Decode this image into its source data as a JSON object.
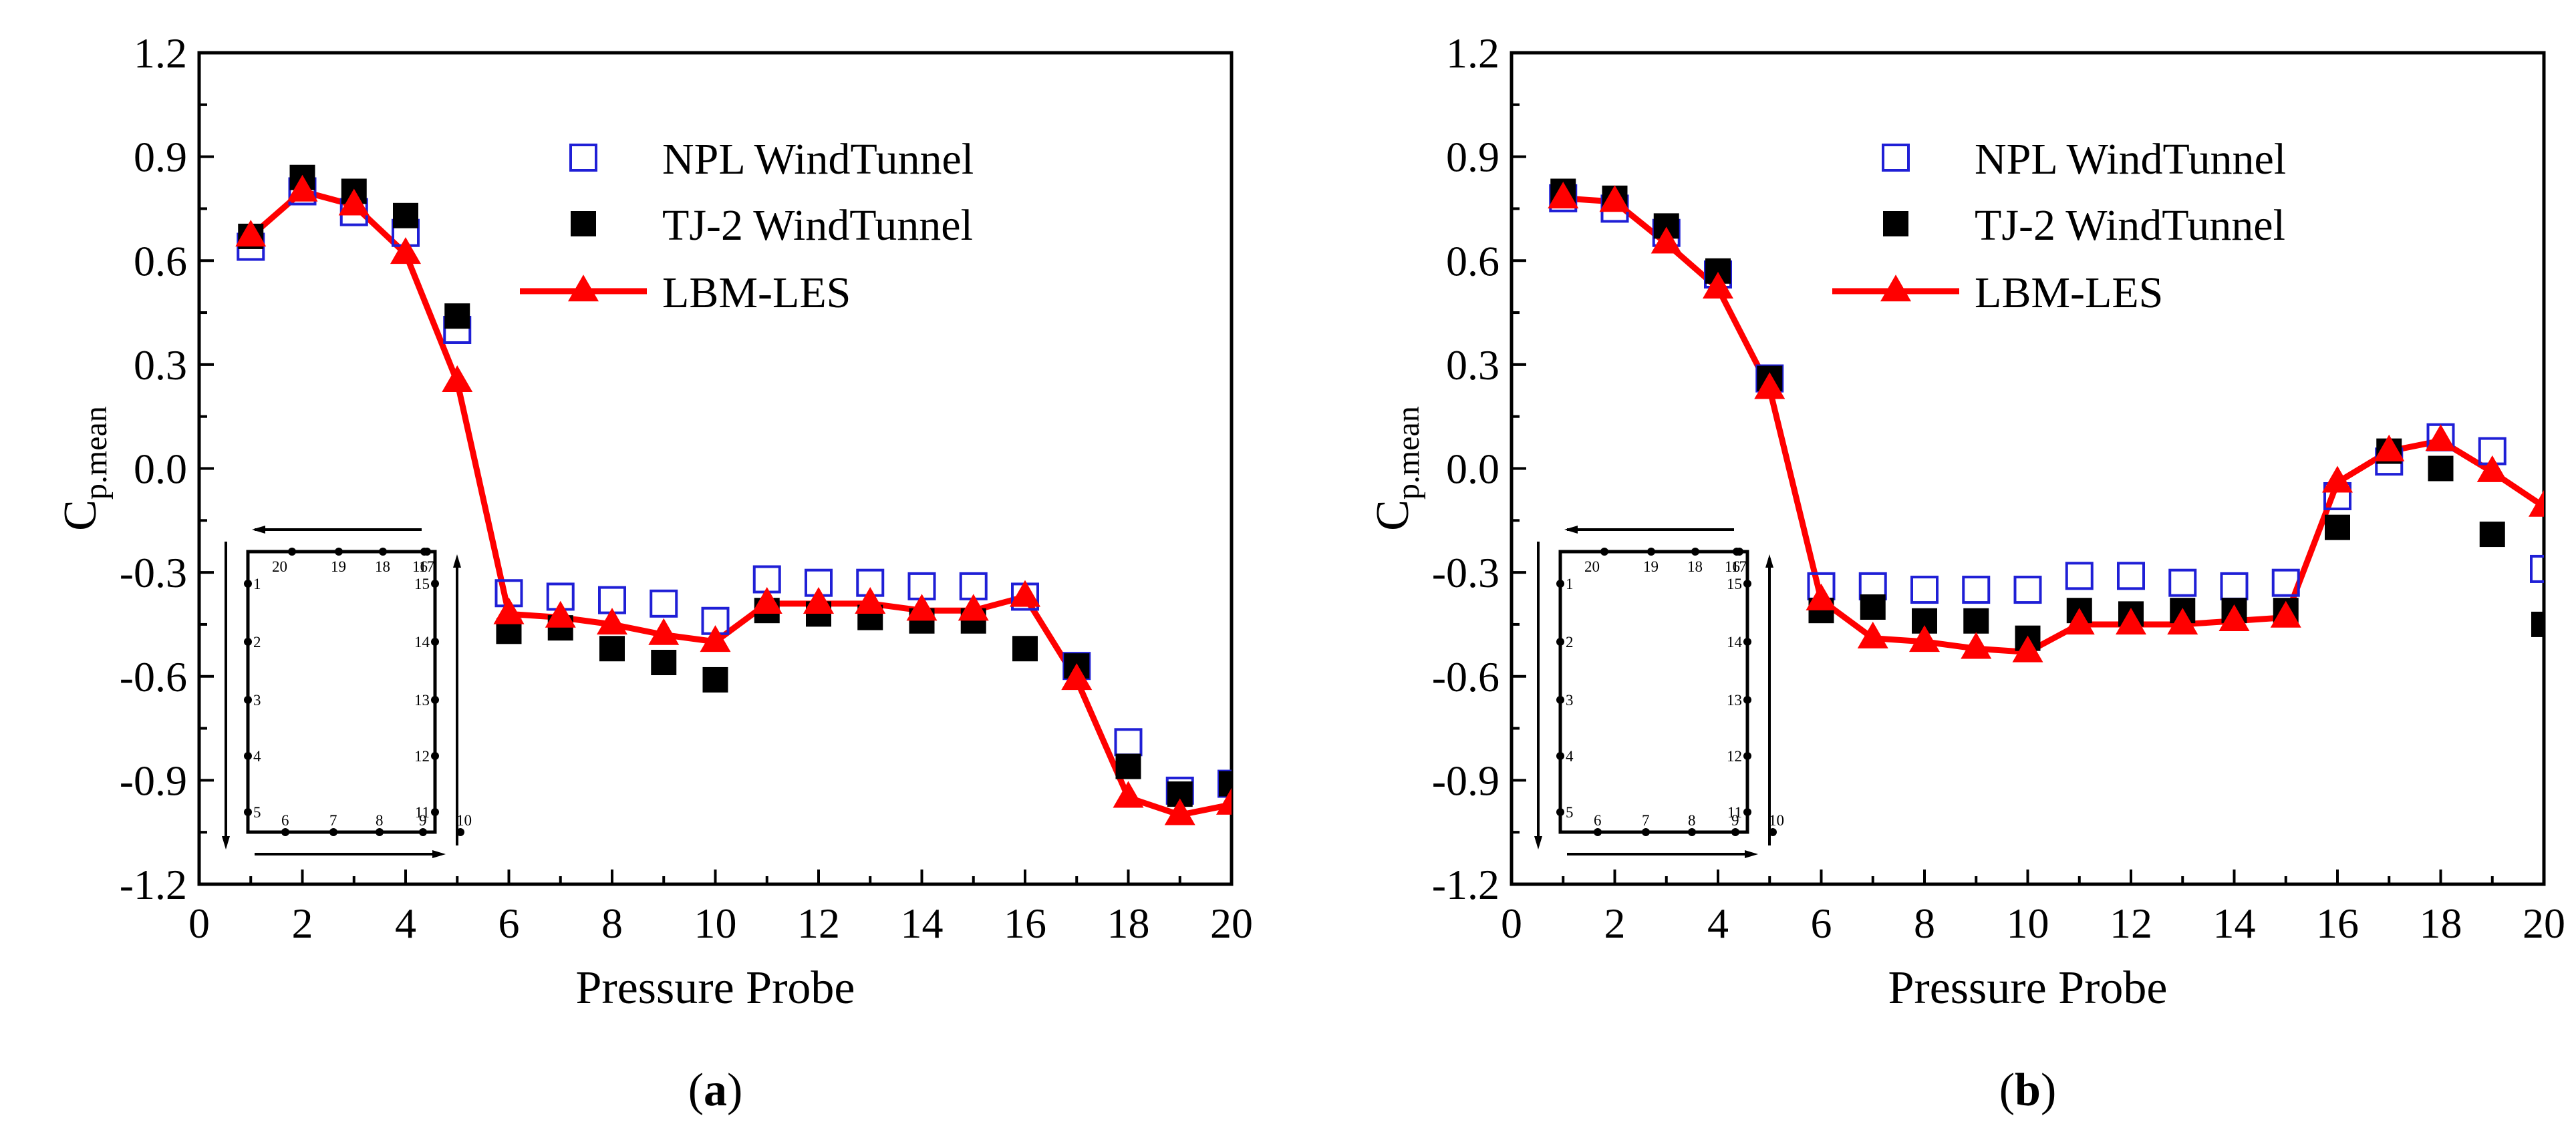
{
  "chart_data": [
    {
      "type": "line",
      "panel_label": "a",
      "xlabel": "Pressure Probe",
      "ylabel_main": "C",
      "ylabel_sub": "p.mean",
      "xlim": [
        0,
        20
      ],
      "ylim": [
        -1.2,
        1.2
      ],
      "xticks": [
        0,
        2,
        4,
        6,
        8,
        10,
        12,
        14,
        16,
        18,
        20
      ],
      "yticks": [
        -1.2,
        -0.9,
        -0.6,
        -0.3,
        0.0,
        0.3,
        0.6,
        0.9,
        1.2
      ],
      "ytick_labels": [
        "-1.2",
        "-0.9",
        "-0.6",
        "-0.3",
        "0.0",
        "0.3",
        "0.6",
        "0.9",
        "1.2"
      ],
      "legend_position": "top-right",
      "series": [
        {
          "name": "NPL WindTunnel",
          "marker": "open-square",
          "color": "#1f1fd6",
          "x": [
            1,
            2,
            3,
            4,
            5,
            6,
            7,
            8,
            9,
            10,
            11,
            12,
            13,
            14,
            15,
            16,
            17,
            18,
            19,
            20
          ],
          "values": [
            0.64,
            0.8,
            0.74,
            0.68,
            0.4,
            -0.36,
            -0.37,
            -0.38,
            -0.39,
            -0.44,
            -0.32,
            -0.33,
            -0.33,
            -0.34,
            -0.34,
            -0.37,
            -0.57,
            -0.79,
            -0.93,
            -0.91
          ]
        },
        {
          "name": "TJ-2 WindTunnel",
          "marker": "filled-square",
          "color": "#000000",
          "x": [
            1,
            2,
            3,
            4,
            5,
            6,
            7,
            8,
            9,
            10,
            11,
            12,
            13,
            14,
            15,
            16,
            17,
            18,
            19,
            20
          ],
          "values": [
            0.67,
            0.84,
            0.8,
            0.73,
            0.44,
            -0.47,
            -0.46,
            -0.52,
            -0.56,
            -0.61,
            -0.41,
            -0.42,
            -0.43,
            -0.44,
            -0.44,
            -0.52,
            -0.57,
            -0.86,
            -0.94,
            -0.91
          ]
        },
        {
          "name": "LBM-LES",
          "marker": "filled-triangle-line",
          "color": "#ff0000",
          "x": [
            1,
            2,
            3,
            4,
            5,
            6,
            7,
            8,
            9,
            10,
            11,
            12,
            13,
            14,
            15,
            16,
            17,
            18,
            19,
            20
          ],
          "values": [
            0.67,
            0.8,
            0.76,
            0.62,
            0.25,
            -0.42,
            -0.43,
            -0.45,
            -0.48,
            -0.5,
            -0.39,
            -0.39,
            -0.39,
            -0.41,
            -0.41,
            -0.37,
            -0.61,
            -0.95,
            -1.0,
            -0.97
          ]
        }
      ]
    },
    {
      "type": "line",
      "panel_label": "b",
      "xlabel": "Pressure Probe",
      "ylabel_main": "C",
      "ylabel_sub": "p.mean",
      "xlim": [
        0,
        20
      ],
      "ylim": [
        -1.2,
        1.2
      ],
      "xticks": [
        0,
        2,
        4,
        6,
        8,
        10,
        12,
        14,
        16,
        18,
        20
      ],
      "yticks": [
        -1.2,
        -0.9,
        -0.6,
        -0.3,
        0.0,
        0.3,
        0.6,
        0.9,
        1.2
      ],
      "ytick_labels": [
        "-1.2",
        "-0.9",
        "-0.6",
        "-0.3",
        "0.0",
        "0.3",
        "0.6",
        "0.9",
        "1.2"
      ],
      "legend_position": "top-right",
      "series": [
        {
          "name": "NPL WindTunnel",
          "marker": "open-square",
          "color": "#1f1fd6",
          "x": [
            1,
            2,
            3,
            4,
            5,
            6,
            7,
            8,
            9,
            10,
            11,
            12,
            13,
            14,
            15,
            16,
            17,
            18,
            19,
            20
          ],
          "values": [
            0.78,
            0.75,
            0.68,
            0.56,
            0.26,
            -0.34,
            -0.34,
            -0.35,
            -0.35,
            -0.35,
            -0.31,
            -0.31,
            -0.33,
            -0.34,
            -0.33,
            -0.08,
            0.02,
            0.09,
            0.05,
            -0.29
          ]
        },
        {
          "name": "TJ-2 WindTunnel",
          "marker": "filled-square",
          "color": "#000000",
          "x": [
            1,
            2,
            3,
            4,
            5,
            6,
            7,
            8,
            9,
            10,
            11,
            12,
            13,
            14,
            15,
            16,
            17,
            18,
            19,
            20
          ],
          "values": [
            0.8,
            0.78,
            0.7,
            0.57,
            0.26,
            -0.41,
            -0.4,
            -0.44,
            -0.44,
            -0.49,
            -0.41,
            -0.42,
            -0.41,
            -0.41,
            -0.41,
            -0.17,
            0.05,
            0.0,
            -0.19,
            -0.45
          ]
        },
        {
          "name": "LBM-LES",
          "marker": "filled-triangle-line",
          "color": "#ff0000",
          "x": [
            1,
            2,
            3,
            4,
            5,
            6,
            7,
            8,
            9,
            10,
            11,
            12,
            13,
            14,
            15,
            16,
            17,
            18,
            19,
            20
          ],
          "values": [
            0.78,
            0.77,
            0.65,
            0.52,
            0.23,
            -0.38,
            -0.49,
            -0.5,
            -0.52,
            -0.53,
            -0.45,
            -0.45,
            -0.45,
            -0.44,
            -0.43,
            -0.04,
            0.05,
            0.08,
            -0.01,
            -0.11
          ]
        }
      ]
    }
  ],
  "inset": {
    "top_labels": [
      "20",
      "19",
      "18",
      "17",
      "16"
    ],
    "left_labels": [
      "1",
      "2",
      "3",
      "4",
      "5"
    ],
    "bottom_labels": [
      "6",
      "7",
      "8",
      "9",
      "10"
    ],
    "right_labels": [
      "15",
      "14",
      "13",
      "12",
      "11"
    ]
  }
}
